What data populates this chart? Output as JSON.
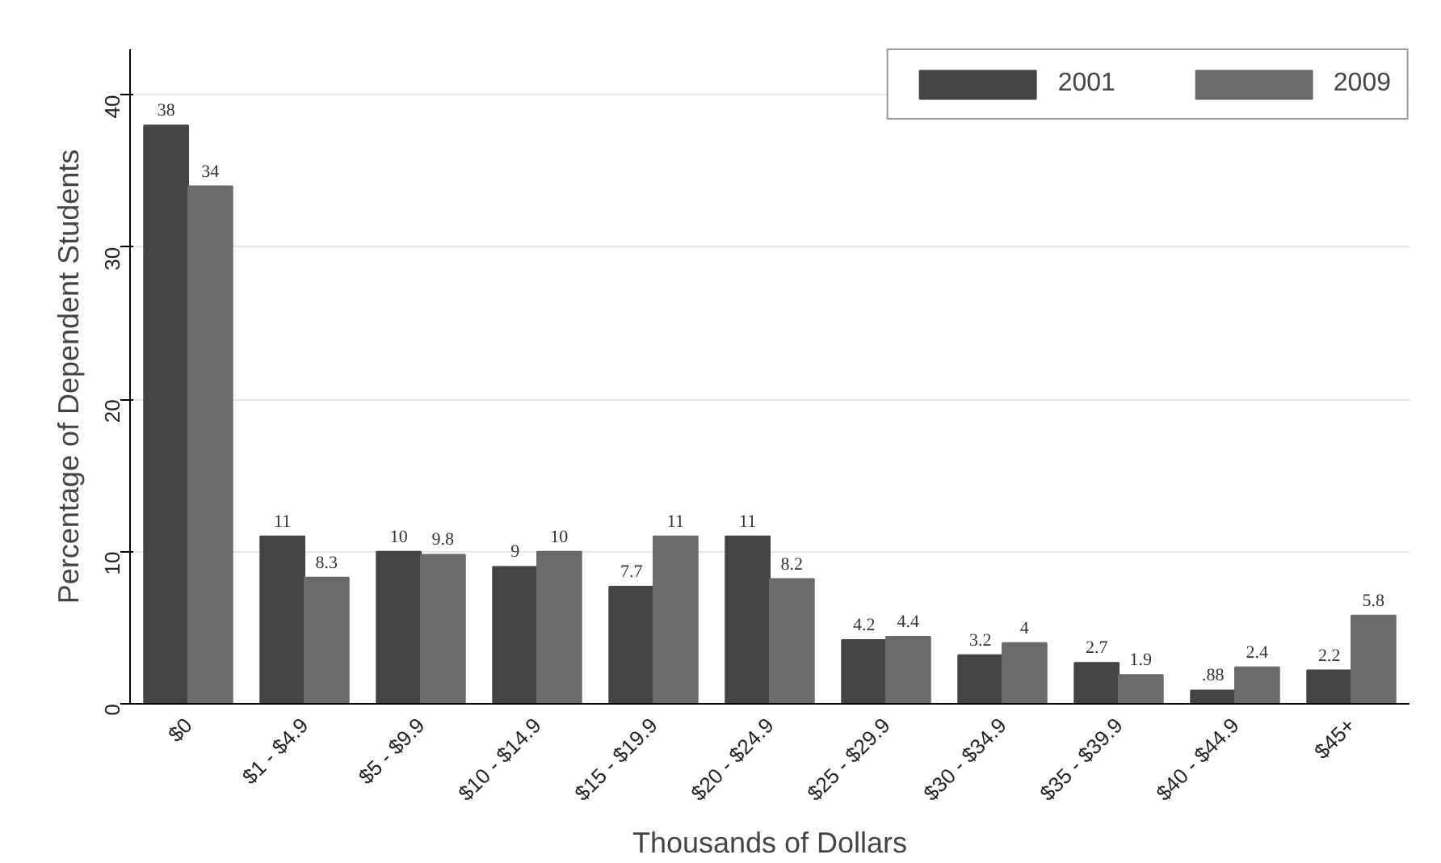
{
  "chart_data": {
    "type": "bar",
    "xlabel": "Thousands of Dollars",
    "ylabel": "Percentage of Dependent Students",
    "categories": [
      "$0",
      "$1 - $4.9",
      "$5 - $9.9",
      "$10 - $14.9",
      "$15 - $19.9",
      "$20 - $24.9",
      "$25 - $29.9",
      "$30 - $34.9",
      "$35 - $39.9",
      "$40 - $44.9",
      "$45+"
    ],
    "series": [
      {
        "name": "2001",
        "color": "#444444",
        "values": [
          38,
          11,
          10,
          9,
          7.7,
          11,
          4.2,
          3.2,
          2.7,
          0.88,
          2.2
        ],
        "value_labels": [
          "38",
          "11",
          "10",
          "9",
          "7.7",
          "11",
          "4.2",
          "3.2",
          "2.7",
          ".88",
          "2.2"
        ]
      },
      {
        "name": "2009",
        "color": "#6a6a6a",
        "values": [
          34,
          8.3,
          9.8,
          10,
          11,
          8.2,
          4.4,
          4,
          1.9,
          2.4,
          5.8
        ],
        "value_labels": [
          "34",
          "8.3",
          "9.8",
          "10",
          "11",
          "8.2",
          "4.4",
          "4",
          "1.9",
          "2.4",
          "5.8"
        ]
      }
    ],
    "ylim": [
      0,
      43
    ],
    "yticks": [
      0,
      10,
      20,
      30,
      40
    ],
    "grid": "y",
    "legend": "top right"
  }
}
